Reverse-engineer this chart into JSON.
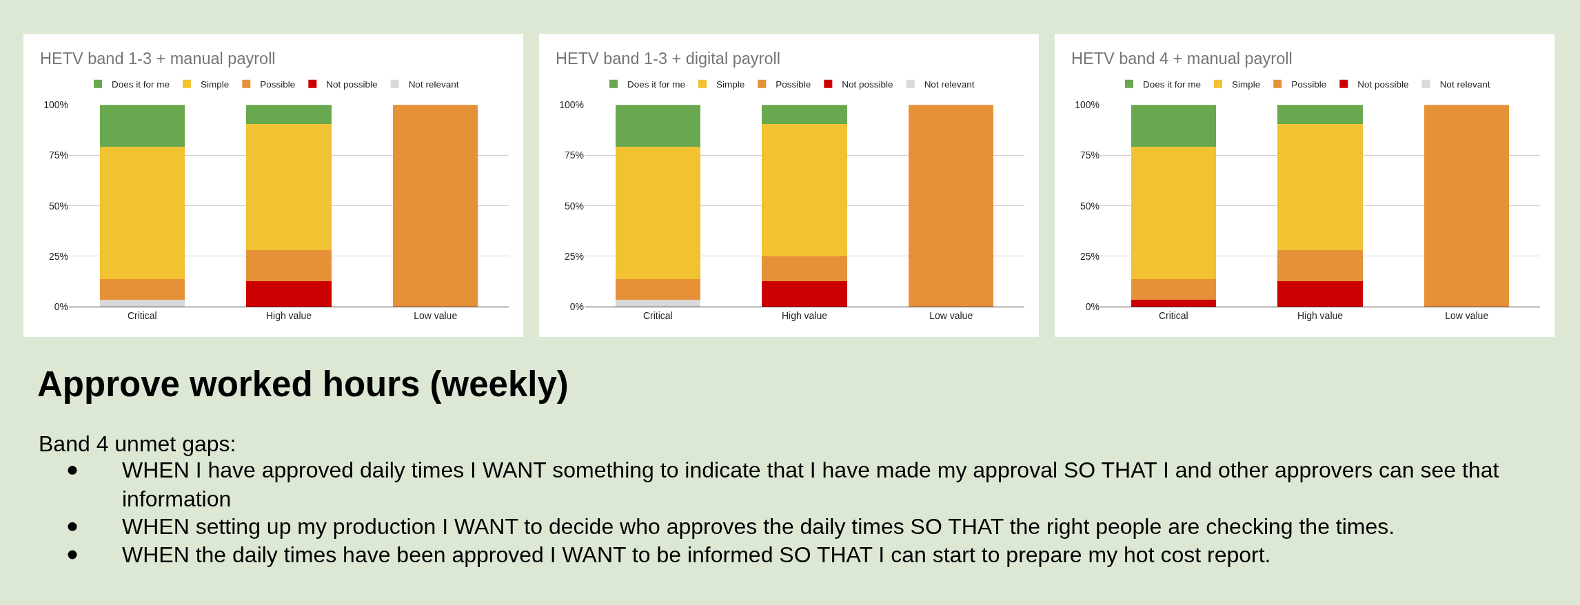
{
  "chart_data": [
    {
      "type": "bar",
      "title": "HETV band 1-3 + manual payroll",
      "categories": [
        "Critical",
        "High value",
        "Low value"
      ],
      "stacked": true,
      "series": [
        {
          "name": "Not relevant",
          "color": "#d9d9d9",
          "values": [
            3.5,
            0,
            0
          ]
        },
        {
          "name": "Not possible",
          "color": "#cc0000",
          "values": [
            0,
            12.5,
            0
          ]
        },
        {
          "name": "Possible",
          "color": "#e69138",
          "values": [
            10.3,
            15.6,
            100
          ]
        },
        {
          "name": "Simple",
          "color": "#f1c232",
          "values": [
            65.5,
            62.5,
            0
          ]
        },
        {
          "name": "Does it for me",
          "color": "#6aa84f",
          "values": [
            20.7,
            9.4,
            0
          ]
        }
      ],
      "ylim": [
        0,
        100
      ],
      "yticks": [
        {
          "value": 0,
          "label": "0%"
        },
        {
          "value": 25,
          "label": "25%"
        },
        {
          "value": 50,
          "label": "50%"
        },
        {
          "value": 75,
          "label": "75%"
        },
        {
          "value": 100,
          "label": "100%"
        }
      ],
      "grid": "y",
      "legend": "top"
    },
    {
      "type": "bar",
      "title": "HETV band 1-3 + digital payroll",
      "categories": [
        "Critical",
        "High value",
        "Low value"
      ],
      "stacked": true,
      "series": [
        {
          "name": "Not relevant",
          "color": "#d9d9d9",
          "values": [
            3.5,
            0,
            0
          ]
        },
        {
          "name": "Not possible",
          "color": "#cc0000",
          "values": [
            0,
            12.5,
            0
          ]
        },
        {
          "name": "Possible",
          "color": "#e69138",
          "values": [
            10.3,
            12.5,
            100
          ]
        },
        {
          "name": "Simple",
          "color": "#f1c232",
          "values": [
            65.5,
            65.6,
            0
          ]
        },
        {
          "name": "Does it for me",
          "color": "#6aa84f",
          "values": [
            20.7,
            9.4,
            0
          ]
        }
      ],
      "ylim": [
        0,
        100
      ],
      "yticks": [
        {
          "value": 0,
          "label": "0%"
        },
        {
          "value": 25,
          "label": "25%"
        },
        {
          "value": 50,
          "label": "50%"
        },
        {
          "value": 75,
          "label": "75%"
        },
        {
          "value": 100,
          "label": "100%"
        }
      ],
      "grid": "y",
      "legend": "top"
    },
    {
      "type": "bar",
      "title": "HETV band 4 + manual payroll",
      "categories": [
        "Critical",
        "High value",
        "Low value"
      ],
      "stacked": true,
      "series": [
        {
          "name": "Not relevant",
          "color": "#d9d9d9",
          "values": [
            0,
            0,
            0
          ]
        },
        {
          "name": "Not possible",
          "color": "#cc0000",
          "values": [
            3.5,
            12.5,
            0
          ]
        },
        {
          "name": "Possible",
          "color": "#e69138",
          "values": [
            10.3,
            15.6,
            100
          ]
        },
        {
          "name": "Simple",
          "color": "#f1c232",
          "values": [
            65.5,
            62.5,
            0
          ]
        },
        {
          "name": "Does it for me",
          "color": "#6aa84f",
          "values": [
            20.7,
            9.4,
            0
          ]
        }
      ],
      "ylim": [
        0,
        100
      ],
      "yticks": [
        {
          "value": 0,
          "label": "0%"
        },
        {
          "value": 25,
          "label": "25%"
        },
        {
          "value": 50,
          "label": "50%"
        },
        {
          "value": 75,
          "label": "75%"
        },
        {
          "value": 100,
          "label": "100%"
        }
      ],
      "grid": "y",
      "legend": "top"
    },
    {
      "type": "other",
      "title": "Approve worked hours (weekly)",
      "subtitle": "Band 4 unmet gaps:",
      "annotations": [
        "WHEN I have approved daily times I WANT something to indicate that I have made my approval SO THAT I and other approvers can see that information",
        "WHEN setting up my production I WANT to decide who approves the daily times SO THAT the right people are checking the times.",
        "WHEN the daily times have been approved I WANT to be informed SO THAT I can start to prepare my hot cost report."
      ]
    }
  ]
}
